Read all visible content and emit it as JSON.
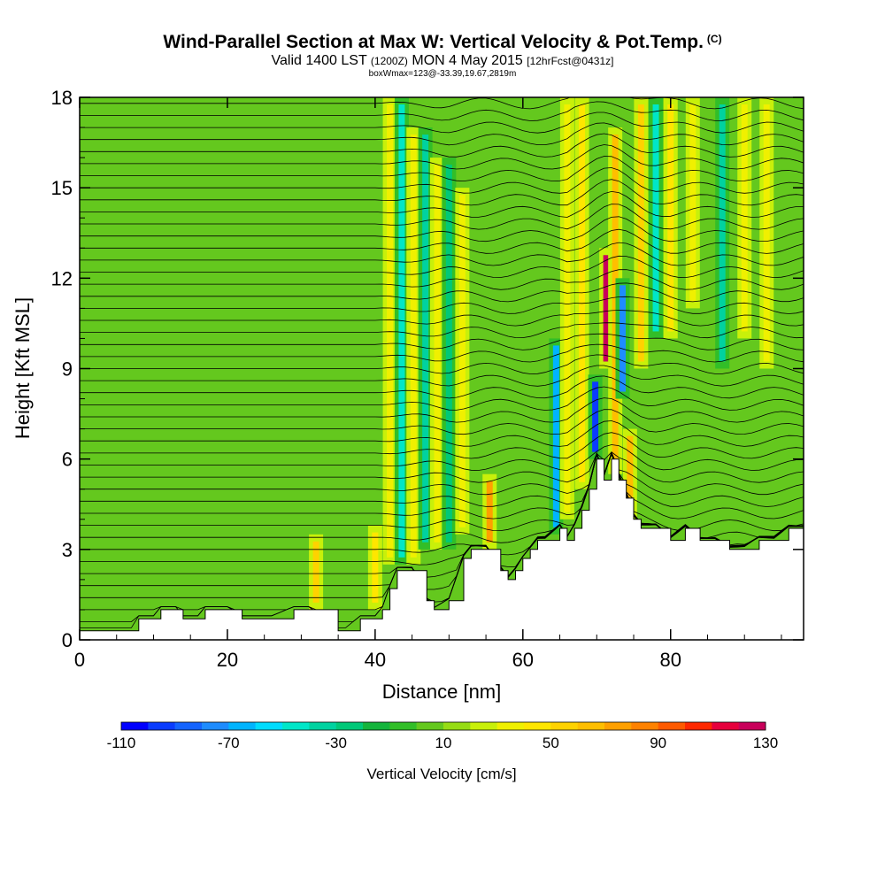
{
  "chart_data": {
    "type": "heatmap",
    "title": "Wind-Parallel Section at Max W: Vertical Velocity & Pot.Temp.",
    "title_mark": "(C)",
    "subtitle_main": "Valid 1400 LST",
    "subtitle_z": "(1200Z)",
    "subtitle_date": "MON 4 May 2015",
    "subtitle_fcst": "[12hrFcst@0431z]",
    "subtitle2": "boxWmax=123@-33.39,19.67,2819m",
    "xlabel": "Distance [nm]",
    "ylabel": "Height [Kft MSL]",
    "xlim": [
      0,
      98
    ],
    "ylim": [
      0,
      18
    ],
    "x_ticks": [
      "0",
      "20",
      "40",
      "60",
      "80"
    ],
    "y_ticks": [
      "0",
      "3",
      "6",
      "9",
      "12",
      "15",
      "18"
    ],
    "colorbar": {
      "title": "Vertical Velocity [cm/s]",
      "min": -110,
      "max": 130,
      "step": 10,
      "tick_labels": [
        "-110",
        "-70",
        "-30",
        "10",
        "50",
        "90",
        "130"
      ],
      "colors": [
        "#0000ff",
        "#0a3cff",
        "#1464ff",
        "#1e8cff",
        "#00b4ff",
        "#00dcff",
        "#00e6c8",
        "#00d2a0",
        "#00c878",
        "#14b43c",
        "#32be28",
        "#64c81e",
        "#96dc14",
        "#c8f00a",
        "#f0f000",
        "#ffe600",
        "#ffd200",
        "#ffbe00",
        "#ffa000",
        "#ff8200",
        "#ff5a00",
        "#ff2800",
        "#e6003c",
        "#c8005a"
      ]
    },
    "terrain_profile": {
      "x": [
        0,
        7,
        8,
        10,
        11,
        13,
        14,
        16,
        17,
        20,
        22,
        26,
        29,
        31,
        35,
        36,
        38,
        40,
        41,
        42,
        43,
        45,
        47,
        48,
        50,
        52,
        53,
        55,
        57,
        58,
        59,
        60,
        61,
        62,
        63,
        65,
        66,
        67,
        68,
        69,
        70,
        71,
        72,
        73,
        74,
        75,
        76,
        78,
        80,
        82,
        84,
        86,
        88,
        90,
        92,
        94,
        96,
        98
      ],
      "height_kft": [
        0.3,
        0.3,
        0.7,
        0.7,
        1.0,
        1.0,
        0.7,
        0.7,
        1.0,
        1.0,
        0.7,
        0.7,
        1.0,
        1.0,
        0.3,
        0.3,
        0.7,
        0.7,
        1.0,
        1.7,
        2.3,
        2.3,
        1.3,
        1.0,
        1.3,
        2.7,
        3.0,
        3.0,
        2.3,
        2.0,
        2.3,
        2.7,
        3.0,
        3.3,
        3.3,
        3.7,
        3.3,
        3.7,
        4.3,
        5.0,
        6.0,
        5.3,
        6.0,
        5.3,
        4.7,
        4.0,
        3.7,
        3.7,
        3.3,
        3.7,
        3.3,
        3.3,
        3.0,
        3.0,
        3.3,
        3.3,
        3.7,
        3.7
      ]
    },
    "updraft_streaks": [
      {
        "x": 32,
        "z0": 1,
        "z1": 3.5,
        "w": 50
      },
      {
        "x": 40,
        "z0": 1,
        "z1": 3.8,
        "w": 40
      },
      {
        "x": 42,
        "z0": 2.5,
        "z1": 18,
        "w": 35
      },
      {
        "x": 43.6,
        "z0": 2.5,
        "z1": 18,
        "w": -45
      },
      {
        "x": 45.2,
        "z0": 2.5,
        "z1": 17,
        "w": 30
      },
      {
        "x": 46.8,
        "z0": 3,
        "z1": 17,
        "w": -35
      },
      {
        "x": 48.4,
        "z0": 3,
        "z1": 16,
        "w": 35
      },
      {
        "x": 50,
        "z0": 3,
        "z1": 16,
        "w": -30
      },
      {
        "x": 51.8,
        "z0": 3.5,
        "z1": 15,
        "w": 30
      },
      {
        "x": 55.5,
        "z0": 3,
        "z1": 5.5,
        "w": 70
      },
      {
        "x": 64.5,
        "z0": 3.5,
        "z1": 10,
        "w": -70
      },
      {
        "x": 66,
        "z0": 4,
        "z1": 18,
        "w": 30
      },
      {
        "x": 68,
        "z0": 5,
        "z1": 18,
        "w": 40
      },
      {
        "x": 69.8,
        "z0": 6,
        "z1": 8.8,
        "w": -95
      },
      {
        "x": 71.3,
        "z0": 9,
        "z1": 13,
        "w": 123
      },
      {
        "x": 72.5,
        "z0": 5.5,
        "z1": 17,
        "w": 60
      },
      {
        "x": 73.5,
        "z0": 8,
        "z1": 12,
        "w": -80
      },
      {
        "x": 74.5,
        "z0": 4,
        "z1": 7,
        "w": 60
      },
      {
        "x": 76,
        "z0": 9,
        "z1": 18,
        "w": 50
      },
      {
        "x": 78,
        "z0": 10,
        "z1": 18,
        "w": -45
      },
      {
        "x": 80,
        "z0": 10,
        "z1": 18,
        "w": 40
      },
      {
        "x": 83,
        "z0": 11,
        "z1": 18,
        "w": 35
      },
      {
        "x": 87,
        "z0": 9,
        "z1": 18,
        "w": -40
      },
      {
        "x": 90,
        "z0": 10,
        "z1": 18,
        "w": 30
      },
      {
        "x": 93,
        "z0": 9,
        "z1": 18,
        "w": 30
      }
    ]
  }
}
